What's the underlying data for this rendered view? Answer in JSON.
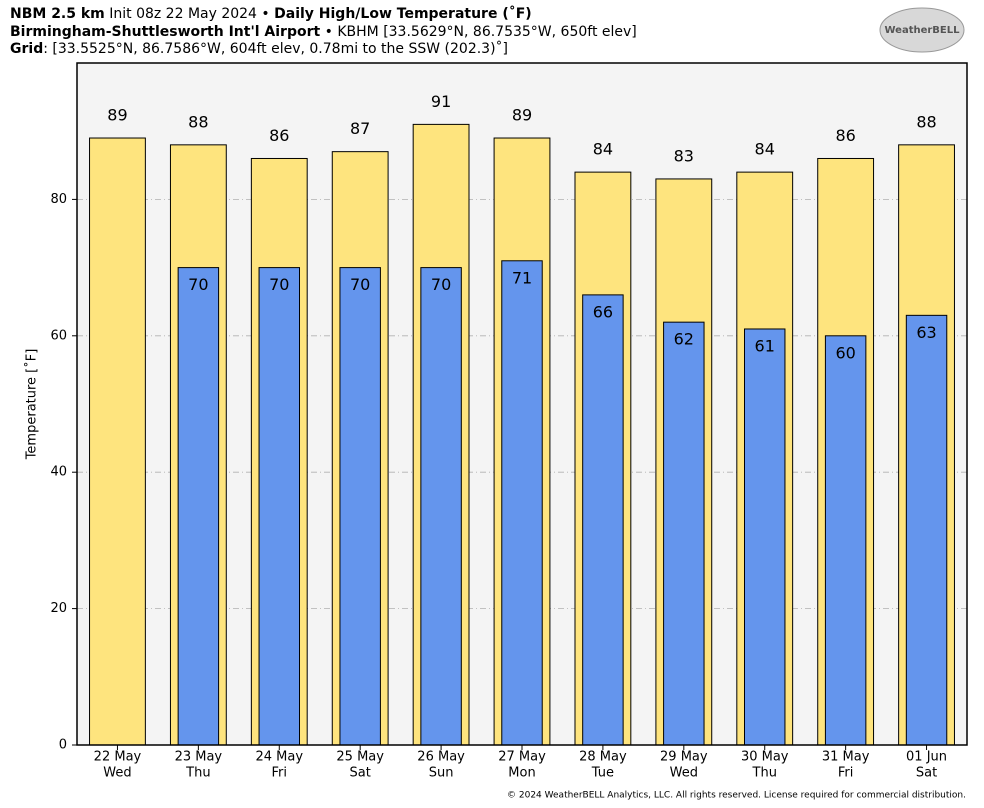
{
  "header": {
    "line1": [
      "NBM 2.5 km",
      " Init 08z 22 May 2024 • ",
      "Daily High/Low Temperature (˚F)"
    ],
    "line2": [
      "Birmingham-Shuttlesworth Int'l Airport",
      " • KBHM [33.5629°N, 86.7535°W, 650ft elev]"
    ],
    "line3": [
      "Grid",
      ": [33.5525°N, 86.7586°W, 604ft elev, 0.78mi to the SSW (202.3)˚]"
    ],
    "logo": "WeatherBELL"
  },
  "chart_data": {
    "type": "bar",
    "ylabel": "Temperature [˚F]",
    "categories": [
      "22 May",
      "23 May",
      "24 May",
      "25 May",
      "26 May",
      "27 May",
      "28 May",
      "29 May",
      "30 May",
      "31 May",
      "01 Jun"
    ],
    "weekdays": [
      "Wed",
      "Thu",
      "Fri",
      "Sat",
      "Sun",
      "Mon",
      "Tue",
      "Wed",
      "Thu",
      "Fri",
      "Sat"
    ],
    "series": [
      {
        "color": "#fee47e",
        "values": [
          89,
          88,
          86,
          87,
          91,
          89,
          84,
          83,
          84,
          86,
          88
        ]
      },
      {
        "color": "#6495ed",
        "values": [
          null,
          70,
          70,
          70,
          70,
          71,
          66,
          62,
          61,
          60,
          63
        ]
      }
    ],
    "ylim": [
      0,
      100
    ],
    "yticks": [
      0,
      20,
      40,
      60,
      80
    ],
    "grid": true
  },
  "footer": "© 2024 WeatherBELL Analytics, LLC. All rights reserved. License required for commercial distribution."
}
